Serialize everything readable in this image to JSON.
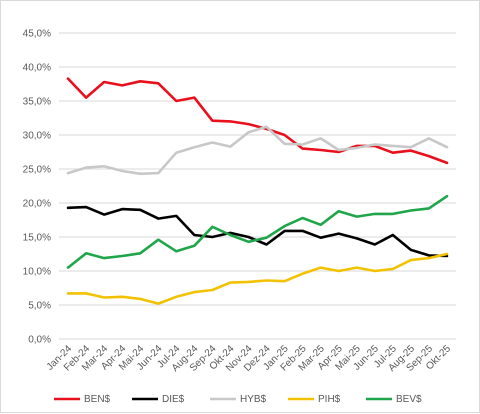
{
  "chart_data": {
    "type": "line",
    "title": "",
    "xlabel": "",
    "ylabel": "",
    "ylim": [
      0,
      45
    ],
    "y_ticks": [
      "0,0%",
      "5,0%",
      "10,0%",
      "15,0%",
      "20,0%",
      "25,0%",
      "30,0%",
      "35,0%",
      "40,0%",
      "45,0%"
    ],
    "y_tick_values": [
      0,
      5,
      10,
      15,
      20,
      25,
      30,
      35,
      40,
      45
    ],
    "grid": true,
    "legend_position": "bottom",
    "categories": [
      "Jan-24",
      "Feb-24",
      "Mar-24",
      "Apr-24",
      "Mai-24",
      "Jun-24",
      "Jul-24",
      "Aug-24",
      "Sep-24",
      "Okt-24",
      "Nov-24",
      "Dez-24",
      "Jan-25",
      "Feb-25",
      "Mar-25",
      "Apr-25",
      "Mai-25",
      "Jun-25",
      "Jul-25",
      "Aug-25",
      "Sep-25",
      "Okt-25"
    ],
    "series": [
      {
        "name": "BEN$",
        "color": "#e8101c",
        "values": [
          38.3,
          35.5,
          37.8,
          37.3,
          37.9,
          37.6,
          35.0,
          35.5,
          32.1,
          32.0,
          31.6,
          30.9,
          30.0,
          28.0,
          27.8,
          27.5,
          28.4,
          28.4,
          27.4,
          27.7,
          26.9,
          25.9
        ]
      },
      {
        "name": "DIE$",
        "color": "#000000",
        "values": [
          19.3,
          19.4,
          18.3,
          19.1,
          19.0,
          17.7,
          18.1,
          15.3,
          15.0,
          15.6,
          15.0,
          13.9,
          15.9,
          15.9,
          14.9,
          15.5,
          14.8,
          13.9,
          15.3,
          13.1,
          12.3,
          12.2
        ]
      },
      {
        "name": "HYB$",
        "color": "#c8c8c8",
        "values": [
          24.4,
          25.2,
          25.4,
          24.7,
          24.3,
          24.4,
          27.4,
          28.2,
          28.9,
          28.3,
          30.4,
          31.2,
          28.7,
          28.6,
          29.5,
          27.8,
          28.1,
          28.6,
          28.4,
          28.2,
          29.5,
          28.2
        ]
      },
      {
        "name": "PIH$",
        "color": "#f2c200",
        "values": [
          6.7,
          6.7,
          6.1,
          6.2,
          5.9,
          5.2,
          6.2,
          6.9,
          7.2,
          8.3,
          8.4,
          8.6,
          8.5,
          9.6,
          10.5,
          10.0,
          10.5,
          10.0,
          10.3,
          11.6,
          11.9,
          12.5
        ]
      },
      {
        "name": "BEV$",
        "color": "#1fa64a",
        "values": [
          10.5,
          12.6,
          11.9,
          12.2,
          12.6,
          14.6,
          12.9,
          13.7,
          16.5,
          15.3,
          14.3,
          14.9,
          16.6,
          17.8,
          16.8,
          18.8,
          18.0,
          18.4,
          18.4,
          18.9,
          19.2,
          21.0
        ]
      }
    ]
  }
}
